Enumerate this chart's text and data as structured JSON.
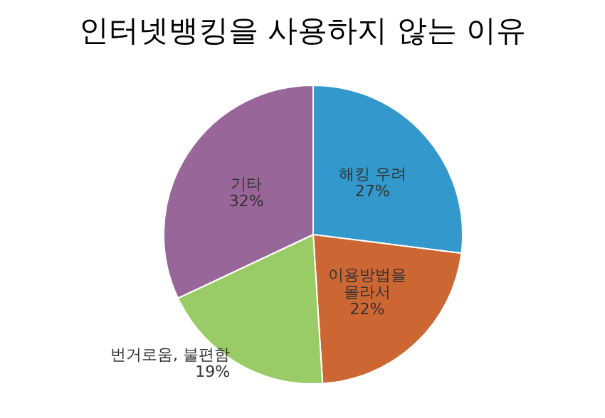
{
  "chart_data": {
    "type": "pie",
    "title": "인터넷뱅킹을 사용하지 않는 이유",
    "categories": [
      "해킹 우려",
      "이용방법을\n몰라서",
      "번거로움, 불편함",
      "기타"
    ],
    "values": [
      27,
      22,
      19,
      32
    ],
    "value_labels": [
      "27%",
      "22%",
      "19%",
      "32%"
    ],
    "colors": [
      "#3399cc",
      "#cc6633",
      "#99cc66",
      "#996699"
    ],
    "legend": false
  }
}
